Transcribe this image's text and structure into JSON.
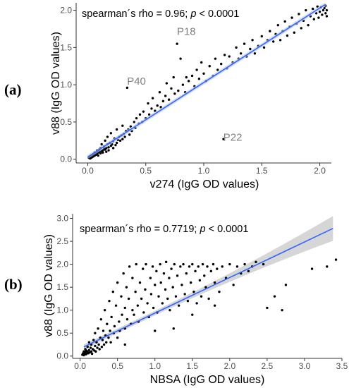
{
  "chart_data": [
    {
      "type": "scatter",
      "panel_label": "(a)",
      "xlabel": "v274 (IgG OD values)",
      "ylabel": "v88 (IgG OD values)",
      "xlim": [
        -0.1,
        2.1
      ],
      "ylim": [
        -0.05,
        2.1
      ],
      "xticks": [
        "0.0",
        "0.5",
        "1.0",
        "1.5",
        "2.0"
      ],
      "yticks": [
        "0.0",
        "0.5",
        "1.0",
        "1.5",
        "2.0"
      ],
      "stat_prefix": "spearman´s rho = 0.96; ",
      "stat_p": "p",
      "stat_suffix": " < 0.0001",
      "grid": false,
      "fit_line": {
        "x": [
          0.0,
          2.05
        ],
        "y": [
          0.03,
          2.08
        ],
        "color": "#3366ff"
      },
      "annotations": [
        {
          "text": "P18",
          "x": 0.85,
          "y": 1.67
        },
        {
          "text": "P40",
          "x": 0.42,
          "y": 1.0
        },
        {
          "text": "P22",
          "x": 1.25,
          "y": 0.25
        }
      ],
      "points": [
        [
          0.01,
          0.02
        ],
        [
          0.02,
          0.03
        ],
        [
          0.02,
          0.01
        ],
        [
          0.03,
          0.04
        ],
        [
          0.03,
          0.02
        ],
        [
          0.04,
          0.05
        ],
        [
          0.04,
          0.03
        ],
        [
          0.05,
          0.04
        ],
        [
          0.05,
          0.07
        ],
        [
          0.06,
          0.05
        ],
        [
          0.06,
          0.09
        ],
        [
          0.07,
          0.06
        ],
        [
          0.07,
          0.08
        ],
        [
          0.08,
          0.07
        ],
        [
          0.08,
          0.12
        ],
        [
          0.09,
          0.09
        ],
        [
          0.09,
          0.05
        ],
        [
          0.1,
          0.1
        ],
        [
          0.1,
          0.13
        ],
        [
          0.11,
          0.08
        ],
        [
          0.11,
          0.15
        ],
        [
          0.12,
          0.11
        ],
        [
          0.12,
          0.2
        ],
        [
          0.13,
          0.12
        ],
        [
          0.13,
          0.09
        ],
        [
          0.14,
          0.14
        ],
        [
          0.14,
          0.17
        ],
        [
          0.15,
          0.13
        ],
        [
          0.15,
          0.25
        ],
        [
          0.16,
          0.15
        ],
        [
          0.16,
          0.1
        ],
        [
          0.17,
          0.2
        ],
        [
          0.17,
          0.3
        ],
        [
          0.18,
          0.16
        ],
        [
          0.18,
          0.12
        ],
        [
          0.19,
          0.22
        ],
        [
          0.2,
          0.18
        ],
        [
          0.2,
          0.35
        ],
        [
          0.21,
          0.2
        ],
        [
          0.22,
          0.15
        ],
        [
          0.22,
          0.24
        ],
        [
          0.23,
          0.28
        ],
        [
          0.24,
          0.19
        ],
        [
          0.25,
          0.22
        ],
        [
          0.25,
          0.4
        ],
        [
          0.26,
          0.26
        ],
        [
          0.27,
          0.3
        ],
        [
          0.28,
          0.25
        ],
        [
          0.29,
          0.32
        ],
        [
          0.3,
          0.27
        ],
        [
          0.3,
          0.45
        ],
        [
          0.31,
          0.34
        ],
        [
          0.32,
          0.3
        ],
        [
          0.33,
          0.38
        ],
        [
          0.34,
          0.96
        ],
        [
          0.35,
          0.4
        ],
        [
          0.36,
          0.33
        ],
        [
          0.37,
          0.44
        ],
        [
          0.38,
          0.38
        ],
        [
          0.4,
          0.5
        ],
        [
          0.41,
          0.42
        ],
        [
          0.42,
          0.55
        ],
        [
          0.44,
          0.48
        ],
        [
          0.45,
          0.6
        ],
        [
          0.47,
          0.5
        ],
        [
          0.48,
          0.64
        ],
        [
          0.5,
          0.55
        ],
        [
          0.52,
          0.75
        ],
        [
          0.53,
          0.6
        ],
        [
          0.55,
          0.68
        ],
        [
          0.56,
          0.82
        ],
        [
          0.58,
          0.65
        ],
        [
          0.6,
          0.72
        ],
        [
          0.62,
          0.9
        ],
        [
          0.63,
          0.7
        ],
        [
          0.65,
          0.78
        ],
        [
          0.67,
          0.85
        ],
        [
          0.68,
          1.02
        ],
        [
          0.7,
          0.8
        ],
        [
          0.72,
          0.95
        ],
        [
          0.74,
          1.1
        ],
        [
          0.75,
          0.88
        ],
        [
          0.77,
          1.55
        ],
        [
          0.78,
          0.92
        ],
        [
          0.8,
          1.35
        ],
        [
          0.82,
          1.0
        ],
        [
          0.84,
          0.9
        ],
        [
          0.85,
          1.1
        ],
        [
          0.87,
          1.05
        ],
        [
          0.9,
          1.12
        ],
        [
          0.92,
          0.98
        ],
        [
          0.94,
          1.2
        ],
        [
          0.96,
          1.08
        ],
        [
          0.98,
          1.3
        ],
        [
          1.0,
          1.15
        ],
        [
          1.02,
          1.05
        ],
        [
          1.05,
          1.25
        ],
        [
          1.08,
          1.12
        ],
        [
          1.1,
          1.35
        ],
        [
          1.12,
          1.2
        ],
        [
          1.15,
          1.28
        ],
        [
          1.17,
          0.27
        ],
        [
          1.18,
          1.4
        ],
        [
          1.2,
          1.22
        ],
        [
          1.22,
          1.38
        ],
        [
          1.25,
          1.3
        ],
        [
          1.28,
          1.5
        ],
        [
          1.3,
          1.35
        ],
        [
          1.32,
          1.42
        ],
        [
          1.35,
          1.55
        ],
        [
          1.37,
          1.38
        ],
        [
          1.4,
          1.48
        ],
        [
          1.42,
          1.6
        ],
        [
          1.44,
          1.42
        ],
        [
          1.47,
          1.52
        ],
        [
          1.5,
          1.65
        ],
        [
          1.52,
          1.5
        ],
        [
          1.55,
          1.6
        ],
        [
          1.57,
          1.72
        ],
        [
          1.6,
          1.58
        ],
        [
          1.62,
          1.68
        ],
        [
          1.64,
          1.8
        ],
        [
          1.66,
          1.6
        ],
        [
          1.68,
          1.72
        ],
        [
          1.7,
          1.85
        ],
        [
          1.72,
          1.66
        ],
        [
          1.74,
          1.78
        ],
        [
          1.76,
          1.9
        ],
        [
          1.78,
          1.7
        ],
        [
          1.8,
          1.82
        ],
        [
          1.82,
          1.95
        ],
        [
          1.84,
          1.76
        ],
        [
          1.86,
          1.86
        ],
        [
          1.88,
          2.0
        ],
        [
          1.9,
          1.8
        ],
        [
          1.92,
          1.92
        ],
        [
          1.94,
          2.02
        ],
        [
          1.95,
          1.88
        ],
        [
          1.97,
          1.96
        ],
        [
          1.98,
          2.05
        ],
        [
          1.99,
          1.9
        ],
        [
          2.0,
          1.98
        ],
        [
          2.01,
          2.04
        ],
        [
          2.02,
          1.94
        ],
        [
          2.03,
          2.0
        ],
        [
          2.04,
          2.03
        ],
        [
          2.05,
          1.96
        ],
        [
          2.05,
          2.06
        ],
        [
          2.06,
          2.0
        ],
        [
          2.06,
          1.92
        ]
      ]
    },
    {
      "type": "scatter",
      "panel_label": "(b)",
      "xlabel": "NBSA (IgG OD values)",
      "ylabel": "v88 (IgG OD values)",
      "xlim": [
        -0.1,
        3.5
      ],
      "ylim": [
        -0.05,
        3.1
      ],
      "xticks": [
        "0.0",
        "0.5",
        "1.0",
        "1.5",
        "2.0",
        "2.5",
        "3.0",
        "3.5"
      ],
      "yticks": [
        "0.0",
        "0.5",
        "1.0",
        "1.5",
        "2.0",
        "2.5",
        "3.0"
      ],
      "stat_prefix": "spearman´s rho = 0.7719; ",
      "stat_p": "p",
      "stat_suffix": " < 0.0001",
      "grid": false,
      "fit_line": {
        "x": [
          0.05,
          3.38
        ],
        "y": [
          0.2,
          2.78
        ],
        "color": "#3366ff"
      },
      "points": [
        [
          0.03,
          0.03
        ],
        [
          0.04,
          0.06
        ],
        [
          0.05,
          0.02
        ],
        [
          0.05,
          0.1
        ],
        [
          0.06,
          0.05
        ],
        [
          0.07,
          0.08
        ],
        [
          0.07,
          0.15
        ],
        [
          0.08,
          0.04
        ],
        [
          0.08,
          0.12
        ],
        [
          0.09,
          0.07
        ],
        [
          0.1,
          0.1
        ],
        [
          0.1,
          0.2
        ],
        [
          0.11,
          0.06
        ],
        [
          0.12,
          0.13
        ],
        [
          0.12,
          0.3
        ],
        [
          0.13,
          0.08
        ],
        [
          0.14,
          0.18
        ],
        [
          0.15,
          0.1
        ],
        [
          0.15,
          0.25
        ],
        [
          0.16,
          0.05
        ],
        [
          0.17,
          0.15
        ],
        [
          0.18,
          0.35
        ],
        [
          0.19,
          0.12
        ],
        [
          0.2,
          0.22
        ],
        [
          0.2,
          0.5
        ],
        [
          0.21,
          0.1
        ],
        [
          0.22,
          0.3
        ],
        [
          0.23,
          0.18
        ],
        [
          0.24,
          0.6
        ],
        [
          0.25,
          0.25
        ],
        [
          0.26,
          0.15
        ],
        [
          0.27,
          0.4
        ],
        [
          0.28,
          0.8
        ],
        [
          0.29,
          0.2
        ],
        [
          0.3,
          0.35
        ],
        [
          0.31,
          0.55
        ],
        [
          0.32,
          0.25
        ],
        [
          0.33,
          1.0
        ],
        [
          0.34,
          0.45
        ],
        [
          0.35,
          0.3
        ],
        [
          0.36,
          0.7
        ],
        [
          0.38,
          0.4
        ],
        [
          0.39,
          1.2
        ],
        [
          0.4,
          0.55
        ],
        [
          0.41,
          0.3
        ],
        [
          0.42,
          0.85
        ],
        [
          0.44,
          1.4
        ],
        [
          0.45,
          0.5
        ],
        [
          0.46,
          0.65
        ],
        [
          0.48,
          1.1
        ],
        [
          0.5,
          0.4
        ],
        [
          0.5,
          1.6
        ],
        [
          0.52,
          0.75
        ],
        [
          0.53,
          0.55
        ],
        [
          0.55,
          1.3
        ],
        [
          0.56,
          0.9
        ],
        [
          0.58,
          1.8
        ],
        [
          0.6,
          0.6
        ],
        [
          0.6,
          1.05
        ],
        [
          0.62,
          1.5
        ],
        [
          0.63,
          0.8
        ],
        [
          0.65,
          1.25
        ],
        [
          0.66,
          1.95
        ],
        [
          0.68,
          0.7
        ],
        [
          0.7,
          1.0
        ],
        [
          0.7,
          1.7
        ],
        [
          0.72,
          0.9
        ],
        [
          0.74,
          1.4
        ],
        [
          0.75,
          2.0
        ],
        [
          0.77,
          1.1
        ],
        [
          0.78,
          0.75
        ],
        [
          0.8,
          1.6
        ],
        [
          0.82,
          1.25
        ],
        [
          0.84,
          1.9
        ],
        [
          0.85,
          0.95
        ],
        [
          0.87,
          1.45
        ],
        [
          0.88,
          2.0
        ],
        [
          0.9,
          1.15
        ],
        [
          0.92,
          0.85
        ],
        [
          0.94,
          1.7
        ],
        [
          0.95,
          1.35
        ],
        [
          0.97,
          1.95
        ],
        [
          0.98,
          1.05
        ],
        [
          1.0,
          1.55
        ],
        [
          1.02,
          1.85
        ],
        [
          1.03,
          0.95
        ],
        [
          1.05,
          1.3
        ],
        [
          1.07,
          2.0
        ],
        [
          1.08,
          1.6
        ],
        [
          1.1,
          1.15
        ],
        [
          1.12,
          1.8
        ],
        [
          1.14,
          1.45
        ],
        [
          1.15,
          2.05
        ],
        [
          1.17,
          1.25
        ],
        [
          1.19,
          1.7
        ],
        [
          1.2,
          1.0
        ],
        [
          1.22,
          1.9
        ],
        [
          1.24,
          1.5
        ],
        [
          1.26,
          2.0
        ],
        [
          1.28,
          1.3
        ],
        [
          1.3,
          1.75
        ],
        [
          1.32,
          1.1
        ],
        [
          1.34,
          1.95
        ],
        [
          1.36,
          1.55
        ],
        [
          1.38,
          2.0
        ],
        [
          1.4,
          1.35
        ],
        [
          1.42,
          1.8
        ],
        [
          1.44,
          1.2
        ],
        [
          1.46,
          1.95
        ],
        [
          1.48,
          1.6
        ],
        [
          1.5,
          2.0
        ],
        [
          1.52,
          1.4
        ],
        [
          1.54,
          1.85
        ],
        [
          1.56,
          1.15
        ],
        [
          1.58,
          1.95
        ],
        [
          1.6,
          1.65
        ],
        [
          1.62,
          1.3
        ],
        [
          1.64,
          2.0
        ],
        [
          1.66,
          1.75
        ],
        [
          1.68,
          1.5
        ],
        [
          1.7,
          1.95
        ],
        [
          1.72,
          1.25
        ],
        [
          1.75,
          1.85
        ],
        [
          1.78,
          2.0
        ],
        [
          1.8,
          1.6
        ],
        [
          1.83,
          1.9
        ],
        [
          1.86,
          1.4
        ],
        [
          1.9,
          1.95
        ],
        [
          1.95,
          1.7
        ],
        [
          2.0,
          2.0
        ],
        [
          2.05,
          1.55
        ],
        [
          2.1,
          1.95
        ],
        [
          2.15,
          1.8
        ],
        [
          2.2,
          2.0
        ],
        [
          2.25,
          1.85
        ],
        [
          2.3,
          1.95
        ],
        [
          2.35,
          2.05
        ],
        [
          2.5,
          1.05
        ],
        [
          2.6,
          1.3
        ],
        [
          2.7,
          1.0
        ],
        [
          2.75,
          1.55
        ],
        [
          3.1,
          1.9
        ],
        [
          3.3,
          1.95
        ],
        [
          3.42,
          2.1
        ],
        [
          2.45,
          2.0
        ],
        [
          1.25,
          0.6
        ],
        [
          1.0,
          0.55
        ],
        [
          0.6,
          0.25
        ],
        [
          1.5,
          0.9
        ],
        [
          1.8,
          1.1
        ]
      ]
    }
  ]
}
